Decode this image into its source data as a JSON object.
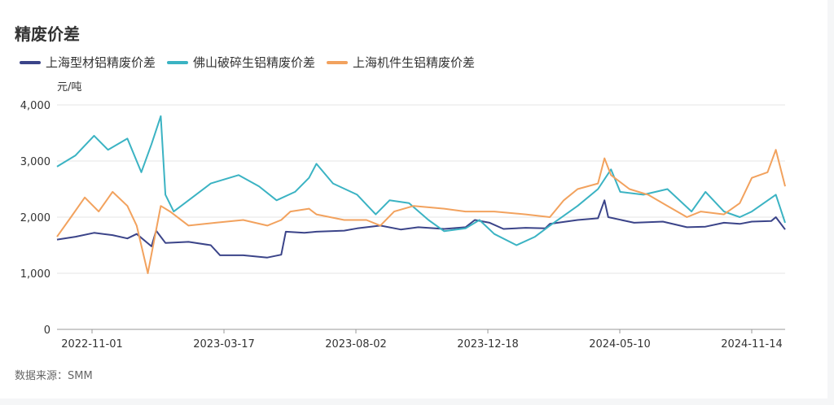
{
  "title": "精废价差",
  "unit_label": "元/吨",
  "source": "数据来源：SMM",
  "chart_data": {
    "type": "line",
    "title": "精废价差",
    "ylabel": "元/吨",
    "ylim": [
      0,
      4000
    ],
    "yticks": [
      0,
      1000,
      2000,
      3000,
      4000
    ],
    "ytick_labels": [
      "0",
      "1,000",
      "2,000",
      "3,000",
      "4,000"
    ],
    "xlim": [
      "2022-10-26",
      "2024-12-20"
    ],
    "xtick_labels": [
      "2022-11-01",
      "2023-03-17",
      "2023-08-02",
      "2023-12-18",
      "2024-05-10",
      "2024-11-14"
    ],
    "grid": true,
    "legend_position": "top-left",
    "series": [
      {
        "name": "上海型材铝精废价差",
        "color": "#3b4489",
        "points": [
          [
            "2022-10-26",
            1600
          ],
          [
            "2022-11-15",
            1650
          ],
          [
            "2022-12-05",
            1720
          ],
          [
            "2022-12-25",
            1680
          ],
          [
            "2023-01-10",
            1620
          ],
          [
            "2023-01-20",
            1700
          ],
          [
            "2023-02-05",
            1480
          ],
          [
            "2023-02-10",
            1760
          ],
          [
            "2023-02-20",
            1540
          ],
          [
            "2023-03-17",
            1560
          ],
          [
            "2023-04-10",
            1500
          ],
          [
            "2023-04-20",
            1320
          ],
          [
            "2023-05-15",
            1320
          ],
          [
            "2023-06-10",
            1280
          ],
          [
            "2023-06-25",
            1330
          ],
          [
            "2023-06-30",
            1740
          ],
          [
            "2023-07-20",
            1720
          ],
          [
            "2023-08-02",
            1740
          ],
          [
            "2023-09-01",
            1760
          ],
          [
            "2023-09-15",
            1800
          ],
          [
            "2023-10-10",
            1850
          ],
          [
            "2023-11-01",
            1780
          ],
          [
            "2023-11-20",
            1820
          ],
          [
            "2023-12-18",
            1790
          ],
          [
            "2024-01-10",
            1820
          ],
          [
            "2024-01-20",
            1950
          ],
          [
            "2024-02-05",
            1900
          ],
          [
            "2024-02-20",
            1790
          ],
          [
            "2024-03-15",
            1810
          ],
          [
            "2024-04-05",
            1800
          ],
          [
            "2024-04-10",
            1880
          ],
          [
            "2024-05-10",
            1950
          ],
          [
            "2024-06-01",
            1980
          ],
          [
            "2024-06-08",
            2300
          ],
          [
            "2024-06-12",
            2000
          ],
          [
            "2024-07-10",
            1900
          ],
          [
            "2024-08-10",
            1920
          ],
          [
            "2024-09-05",
            1820
          ],
          [
            "2024-09-25",
            1830
          ],
          [
            "2024-10-15",
            1900
          ],
          [
            "2024-11-01",
            1880
          ],
          [
            "2024-11-14",
            1920
          ],
          [
            "2024-12-05",
            1930
          ],
          [
            "2024-12-10",
            2000
          ],
          [
            "2024-12-20",
            1780
          ]
        ]
      },
      {
        "name": "佛山破碎生铝精废价差",
        "color": "#3bb3c3",
        "points": [
          [
            "2022-10-26",
            2900
          ],
          [
            "2022-11-15",
            3100
          ],
          [
            "2022-12-05",
            3450
          ],
          [
            "2022-12-20",
            3200
          ],
          [
            "2023-01-10",
            3400
          ],
          [
            "2023-01-25",
            2800
          ],
          [
            "2023-02-05",
            3300
          ],
          [
            "2023-02-15",
            3800
          ],
          [
            "2023-02-20",
            2400
          ],
          [
            "2023-03-01",
            2100
          ],
          [
            "2023-03-17",
            2300
          ],
          [
            "2023-04-10",
            2600
          ],
          [
            "2023-05-10",
            2750
          ],
          [
            "2023-06-01",
            2550
          ],
          [
            "2023-06-20",
            2300
          ],
          [
            "2023-07-10",
            2450
          ],
          [
            "2023-07-25",
            2700
          ],
          [
            "2023-08-02",
            2950
          ],
          [
            "2023-08-20",
            2600
          ],
          [
            "2023-09-15",
            2400
          ],
          [
            "2023-10-05",
            2050
          ],
          [
            "2023-10-20",
            2300
          ],
          [
            "2023-11-10",
            2250
          ],
          [
            "2023-12-01",
            1950
          ],
          [
            "2023-12-18",
            1750
          ],
          [
            "2024-01-10",
            1800
          ],
          [
            "2024-01-25",
            1950
          ],
          [
            "2024-02-10",
            1700
          ],
          [
            "2024-03-05",
            1500
          ],
          [
            "2024-03-25",
            1650
          ],
          [
            "2024-04-10",
            1850
          ],
          [
            "2024-05-10",
            2200
          ],
          [
            "2024-06-01",
            2500
          ],
          [
            "2024-06-15",
            2850
          ],
          [
            "2024-06-25",
            2450
          ],
          [
            "2024-07-20",
            2400
          ],
          [
            "2024-08-15",
            2500
          ],
          [
            "2024-09-10",
            2100
          ],
          [
            "2024-09-25",
            2450
          ],
          [
            "2024-10-15",
            2100
          ],
          [
            "2024-11-01",
            2000
          ],
          [
            "2024-11-14",
            2100
          ],
          [
            "2024-12-10",
            2400
          ],
          [
            "2024-12-20",
            1900
          ]
        ]
      },
      {
        "name": "上海机件生铝精废价差",
        "color": "#f2a25e",
        "points": [
          [
            "2022-10-26",
            1650
          ],
          [
            "2022-11-10",
            2000
          ],
          [
            "2022-11-25",
            2350
          ],
          [
            "2022-12-10",
            2100
          ],
          [
            "2022-12-25",
            2450
          ],
          [
            "2023-01-10",
            2200
          ],
          [
            "2023-01-20",
            1850
          ],
          [
            "2023-02-01",
            1000
          ],
          [
            "2023-02-15",
            2200
          ],
          [
            "2023-02-25",
            2100
          ],
          [
            "2023-03-17",
            1850
          ],
          [
            "2023-04-15",
            1900
          ],
          [
            "2023-05-15",
            1950
          ],
          [
            "2023-06-10",
            1850
          ],
          [
            "2023-06-25",
            1950
          ],
          [
            "2023-07-05",
            2100
          ],
          [
            "2023-07-25",
            2150
          ],
          [
            "2023-08-02",
            2050
          ],
          [
            "2023-09-01",
            1950
          ],
          [
            "2023-09-25",
            1950
          ],
          [
            "2023-10-10",
            1850
          ],
          [
            "2023-10-25",
            2100
          ],
          [
            "2023-11-15",
            2200
          ],
          [
            "2023-12-18",
            2150
          ],
          [
            "2024-01-10",
            2100
          ],
          [
            "2024-02-10",
            2100
          ],
          [
            "2024-03-15",
            2050
          ],
          [
            "2024-04-10",
            2000
          ],
          [
            "2024-04-25",
            2300
          ],
          [
            "2024-05-10",
            2500
          ],
          [
            "2024-06-01",
            2600
          ],
          [
            "2024-06-08",
            3050
          ],
          [
            "2024-06-15",
            2750
          ],
          [
            "2024-07-05",
            2500
          ],
          [
            "2024-07-25",
            2400
          ],
          [
            "2024-08-15",
            2200
          ],
          [
            "2024-09-05",
            2000
          ],
          [
            "2024-09-20",
            2100
          ],
          [
            "2024-10-15",
            2050
          ],
          [
            "2024-11-01",
            2250
          ],
          [
            "2024-11-14",
            2700
          ],
          [
            "2024-12-01",
            2800
          ],
          [
            "2024-12-10",
            3200
          ],
          [
            "2024-12-20",
            2550
          ]
        ]
      }
    ]
  }
}
